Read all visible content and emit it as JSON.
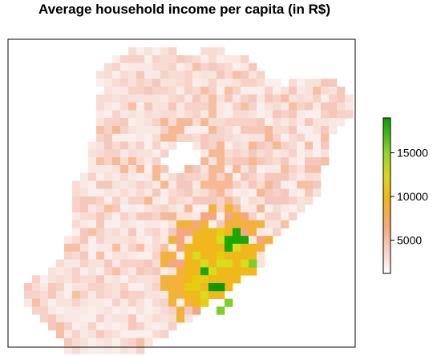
{
  "title": "Average household income per capita (in R$)",
  "legend": {
    "ticks": [
      5000,
      10000,
      15000
    ],
    "tick_labels": [
      "5000",
      "10000",
      "15000"
    ],
    "range": [
      1200,
      19000
    ],
    "colors": [
      "#ffffff",
      "#f6d2cb",
      "#f4a877",
      "#f0b515",
      "#d8d81c",
      "#90d42a",
      "#009e00"
    ]
  },
  "map": {
    "grid_cols": 43,
    "grid_rows": 39,
    "rows": [
      "...............................",
      "..........................................",
      "........................................",
      "...........................................",
      "..................................................",
      "...................................................",
      "....................................................",
      "....................................................",
      "...................................................",
      "...................................................",
      "..................................................",
      "................................................",
      "......",
      "......",
      ".......",
      "......",
      ".....",
      "........................................................",
      "..........................................................",
      "...........................................................",
      "...........................................................",
      "...........................................................",
      "...........................................................",
      "...........................................................",
      "..........................................................",
      "..........................................................",
      "..........................................................",
      "..........................................................",
      "..........................................................",
      "..........................................................",
      "..........................................................",
      "..........................................................",
      "..........................................................",
      "..........................................................",
      "..........................................................",
      "..........................................................",
      "..........................................................",
      "..........................................................",
      ".........................................................."
    ]
  }
}
